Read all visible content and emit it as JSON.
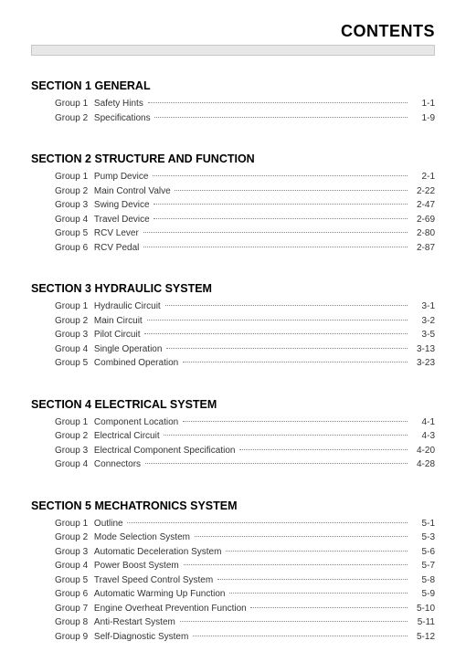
{
  "title": "CONTENTS",
  "sections": [
    {
      "num": "SECTION 1",
      "title": "GENERAL",
      "groups": [
        {
          "label": "Group  1",
          "name": "Safety Hints",
          "page": "1-1"
        },
        {
          "label": "Group  2",
          "name": "Specifications",
          "page": "1-9"
        }
      ]
    },
    {
      "num": "SECTION 2",
      "title": "STRUCTURE AND FUNCTION",
      "groups": [
        {
          "label": "Group  1",
          "name": "Pump Device",
          "page": "2-1"
        },
        {
          "label": "Group  2",
          "name": "Main Control Valve",
          "page": "2-22"
        },
        {
          "label": "Group  3",
          "name": "Swing Device",
          "page": "2-47"
        },
        {
          "label": "Group  4",
          "name": "Travel Device",
          "page": "2-69"
        },
        {
          "label": "Group  5",
          "name": "RCV Lever",
          "page": "2-80"
        },
        {
          "label": "Group  6",
          "name": "RCV Pedal",
          "page": "2-87"
        }
      ]
    },
    {
      "num": "SECTION 3",
      "title": "HYDRAULIC SYSTEM",
      "groups": [
        {
          "label": "Group  1",
          "name": "Hydraulic Circuit",
          "page": "3-1"
        },
        {
          "label": "Group  2",
          "name": "Main Circuit",
          "page": "3-2"
        },
        {
          "label": "Group  3",
          "name": "Pilot Circuit",
          "page": "3-5"
        },
        {
          "label": "Group  4",
          "name": "Single Operation",
          "page": "3-13"
        },
        {
          "label": "Group  5",
          "name": "Combined Operation",
          "page": "3-23"
        }
      ]
    },
    {
      "num": "SECTION 4",
      "title": "ELECTRICAL SYSTEM",
      "groups": [
        {
          "label": "Group  1",
          "name": "Component Location",
          "page": "4-1"
        },
        {
          "label": "Group  2",
          "name": "Electrical Circuit",
          "page": "4-3"
        },
        {
          "label": "Group  3",
          "name": "Electrical Component Specification",
          "page": "4-20"
        },
        {
          "label": "Group  4",
          "name": "Connectors",
          "page": "4-28"
        }
      ]
    },
    {
      "num": "SECTION 5",
      "title": "MECHATRONICS SYSTEM",
      "groups": [
        {
          "label": "Group  1",
          "name": "Outline",
          "page": "5-1"
        },
        {
          "label": "Group  2",
          "name": "Mode Selection System",
          "page": "5-3"
        },
        {
          "label": "Group  3",
          "name": "Automatic Deceleration System",
          "page": "5-6"
        },
        {
          "label": "Group  4",
          "name": "Power Boost System",
          "page": "5-7"
        },
        {
          "label": "Group  5",
          "name": "Travel Speed Control System",
          "page": "5-8"
        },
        {
          "label": "Group  6",
          "name": "Automatic Warming Up Function",
          "page": "5-9"
        },
        {
          "label": "Group  7",
          "name": "Engine Overheat Prevention Function",
          "page": "5-10"
        },
        {
          "label": "Group  8",
          "name": "Anti-Restart System",
          "page": "5-11"
        },
        {
          "label": "Group  9",
          "name": "Self-Diagnostic System",
          "page": "5-12"
        }
      ]
    }
  ]
}
